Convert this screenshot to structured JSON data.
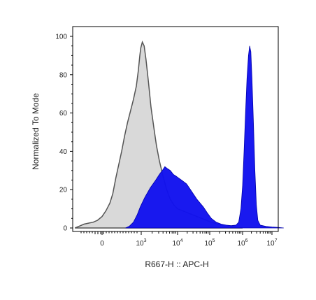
{
  "chart_data": {
    "type": "area",
    "xlabel": "R667-H :: APC-H",
    "ylabel": "Normalized To Mode",
    "ylim": [
      0,
      100
    ],
    "y_ticks": [
      0,
      20,
      40,
      60,
      80,
      100
    ],
    "x_scale": "biexponential",
    "x_ticks": [
      {
        "base": "0",
        "exp": ""
      },
      {
        "base": "10",
        "exp": "3"
      },
      {
        "base": "10",
        "exp": "4"
      },
      {
        "base": "10",
        "exp": "5"
      },
      {
        "base": "10",
        "exp": "6"
      },
      {
        "base": "10",
        "exp": "7"
      }
    ],
    "series": [
      {
        "color": "#d9d9d9",
        "stroke": "#555555",
        "points": [
          [
            -0.9,
            0
          ],
          [
            -0.75,
            1
          ],
          [
            -0.6,
            2
          ],
          [
            -0.45,
            2.5
          ],
          [
            -0.3,
            3
          ],
          [
            -0.15,
            4
          ],
          [
            0,
            6
          ],
          [
            0.2,
            9
          ],
          [
            0.4,
            13
          ],
          [
            0.55,
            18
          ],
          [
            0.7,
            26
          ],
          [
            0.85,
            33
          ],
          [
            1.0,
            40
          ],
          [
            1.15,
            48
          ],
          [
            1.3,
            55
          ],
          [
            1.45,
            61
          ],
          [
            1.6,
            67
          ],
          [
            1.75,
            74
          ],
          [
            1.85,
            82
          ],
          [
            1.93,
            90
          ],
          [
            1.98,
            94
          ],
          [
            2.03,
            97
          ],
          [
            2.08,
            95
          ],
          [
            2.13,
            88
          ],
          [
            2.2,
            76
          ],
          [
            2.27,
            63
          ],
          [
            2.35,
            52
          ],
          [
            2.42,
            43
          ],
          [
            2.5,
            35
          ],
          [
            2.6,
            27
          ],
          [
            2.7,
            20
          ],
          [
            2.8,
            15
          ],
          [
            2.9,
            12
          ],
          [
            3.0,
            10
          ],
          [
            3.15,
            9
          ],
          [
            3.3,
            8
          ],
          [
            3.45,
            7
          ],
          [
            3.6,
            6
          ],
          [
            3.75,
            5
          ],
          [
            3.9,
            4
          ],
          [
            4.05,
            3
          ],
          [
            4.25,
            2
          ],
          [
            4.45,
            1
          ],
          [
            4.7,
            0.5
          ],
          [
            5.0,
            0
          ]
        ]
      },
      {
        "color": "#1212ee",
        "stroke": "#0000aa",
        "points": [
          [
            1.2,
            0
          ],
          [
            1.4,
            1
          ],
          [
            1.6,
            3
          ],
          [
            1.8,
            7
          ],
          [
            1.95,
            11
          ],
          [
            2.1,
            16
          ],
          [
            2.25,
            21
          ],
          [
            2.4,
            25
          ],
          [
            2.5,
            28
          ],
          [
            2.58,
            30
          ],
          [
            2.65,
            32
          ],
          [
            2.72,
            31
          ],
          [
            2.8,
            30
          ],
          [
            2.88,
            28
          ],
          [
            2.96,
            27
          ],
          [
            3.04,
            26
          ],
          [
            3.12,
            25
          ],
          [
            3.2,
            24
          ],
          [
            3.28,
            23
          ],
          [
            3.36,
            21
          ],
          [
            3.44,
            19
          ],
          [
            3.52,
            17
          ],
          [
            3.6,
            15
          ],
          [
            3.7,
            13
          ],
          [
            3.8,
            11
          ],
          [
            3.92,
            8
          ],
          [
            4.05,
            5
          ],
          [
            4.2,
            3
          ],
          [
            4.35,
            2
          ],
          [
            4.5,
            1.5
          ],
          [
            4.65,
            1.2
          ],
          [
            4.8,
            1.5
          ],
          [
            4.88,
            3
          ],
          [
            4.95,
            10
          ],
          [
            5.0,
            22
          ],
          [
            5.05,
            40
          ],
          [
            5.1,
            60
          ],
          [
            5.15,
            78
          ],
          [
            5.2,
            90
          ],
          [
            5.24,
            95
          ],
          [
            5.28,
            92
          ],
          [
            5.32,
            78
          ],
          [
            5.37,
            55
          ],
          [
            5.42,
            30
          ],
          [
            5.47,
            12
          ],
          [
            5.52,
            4
          ],
          [
            5.6,
            1.5
          ],
          [
            5.8,
            0.8
          ],
          [
            6.0,
            0.5
          ],
          [
            6.2,
            0.3
          ],
          [
            6.4,
            0
          ]
        ]
      }
    ]
  }
}
